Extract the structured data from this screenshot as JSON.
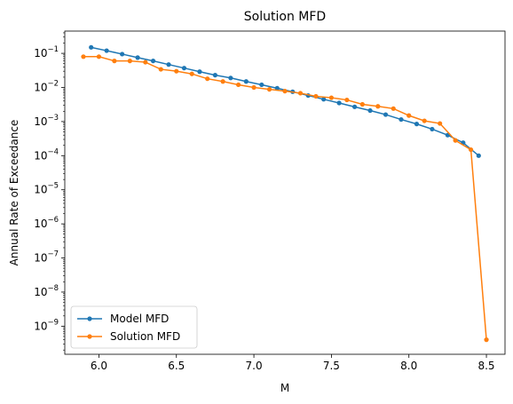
{
  "chart_data": {
    "type": "line",
    "title": "Solution MFD",
    "xlabel": "M",
    "ylabel": "Annual Rate of Exceedance",
    "xlim": [
      5.78,
      8.62
    ],
    "ylim": [
      1.5e-10,
      0.45
    ],
    "yscale": "log",
    "x_ticks": [
      6.0,
      6.5,
      7.0,
      7.5,
      8.0,
      8.5
    ],
    "x_tick_labels": [
      "6.0",
      "6.5",
      "7.0",
      "7.5",
      "8.0",
      "8.5"
    ],
    "y_tick_exponents": [
      -9,
      -8,
      -7,
      -6,
      -5,
      -4,
      -3,
      -2,
      -1
    ],
    "y_tick_base": "10",
    "grid": false,
    "legend_position": "lower-left",
    "series": [
      {
        "name": "Model MFD",
        "color": "#1f77b4",
        "marker": "circle",
        "x": [
          5.95,
          6.05,
          6.15,
          6.25,
          6.35,
          6.45,
          6.55,
          6.65,
          6.75,
          6.85,
          6.95,
          7.05,
          7.15,
          7.25,
          7.35,
          7.45,
          7.55,
          7.65,
          7.75,
          7.85,
          7.95,
          8.05,
          8.15,
          8.25,
          8.35,
          8.45
        ],
        "values": [
          0.15,
          0.12,
          0.095,
          0.075,
          0.06,
          0.047,
          0.037,
          0.029,
          0.023,
          0.019,
          0.015,
          0.012,
          0.0095,
          0.0075,
          0.0058,
          0.0045,
          0.0035,
          0.0027,
          0.0021,
          0.0016,
          0.00115,
          0.00085,
          0.0006,
          0.0004,
          0.00024,
          0.0001
        ]
      },
      {
        "name": "Solution MFD",
        "color": "#ff7f0e",
        "marker": "circle",
        "x": [
          5.9,
          6.0,
          6.1,
          6.2,
          6.3,
          6.4,
          6.5,
          6.6,
          6.7,
          6.8,
          6.9,
          7.0,
          7.1,
          7.2,
          7.3,
          7.4,
          7.5,
          7.6,
          7.7,
          7.8,
          7.9,
          8.0,
          8.1,
          8.2,
          8.3,
          8.4,
          8.5
        ],
        "values": [
          0.08,
          0.08,
          0.06,
          0.06,
          0.055,
          0.034,
          0.03,
          0.025,
          0.018,
          0.015,
          0.012,
          0.01,
          0.0088,
          0.0078,
          0.0068,
          0.0055,
          0.005,
          0.0043,
          0.0032,
          0.0028,
          0.0024,
          0.0015,
          0.00105,
          0.00088,
          0.00028,
          0.00015,
          4e-10
        ]
      }
    ]
  }
}
